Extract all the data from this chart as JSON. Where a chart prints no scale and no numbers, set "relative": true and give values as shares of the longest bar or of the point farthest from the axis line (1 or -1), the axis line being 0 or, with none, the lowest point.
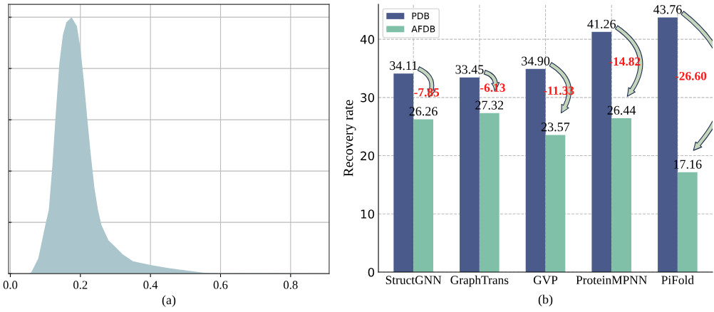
{
  "chart_data": [
    {
      "type": "area",
      "relative": true,
      "color": "#aac5cb",
      "xlabel": "(a)",
      "xlim": [
        -0.005,
        0.91
      ],
      "xticks": [
        {
          "value": 0,
          "label": "0.0"
        },
        0.2,
        0.4,
        0.6,
        0.8
      ],
      "grid": true,
      "tick_labels": "x",
      "x": [
        0.05,
        0.06,
        0.08,
        0.1,
        0.11,
        0.12,
        0.13,
        0.14,
        0.15,
        0.16,
        0.175,
        0.19,
        0.2,
        0.21,
        0.22,
        0.23,
        0.24,
        0.25,
        0.26,
        0.28,
        0.3,
        0.32,
        0.35,
        0.4,
        0.45,
        0.5,
        0.55,
        0.6,
        0.65,
        0.7,
        0.75,
        0.8,
        0.9
      ],
      "values": [
        0,
        0.005,
        0.06,
        0.19,
        0.25,
        0.42,
        0.63,
        0.82,
        0.93,
        0.98,
        1.0,
        0.965,
        0.88,
        0.75,
        0.6,
        0.46,
        0.335,
        0.25,
        0.19,
        0.13,
        0.104,
        0.076,
        0.048,
        0.034,
        0.022,
        0.013,
        0.004,
        0.001,
        0.002,
        0.001,
        0.002,
        0.001,
        0
      ]
    },
    {
      "type": "bar",
      "xlabel": "(b)",
      "ylabel": "Recovery rate",
      "categories": [
        "StructGNN",
        "GraphTrans",
        "GVP",
        "ProteinMPNN",
        "PiFold"
      ],
      "series": [
        {
          "name": "PDB",
          "color": "#4a5a8a",
          "values": [
            34.11,
            33.45,
            34.9,
            41.26,
            43.76
          ],
          "value_labels": [
            "34.11",
            "33.45",
            "34.90",
            "41.26",
            "43.76"
          ]
        },
        {
          "name": "AFDB",
          "color": "#80bfa8",
          "values": [
            26.26,
            27.32,
            23.57,
            26.44,
            17.16
          ],
          "value_labels": [
            "26.26",
            "27.32",
            "23.57",
            "26.44",
            "17.16"
          ]
        }
      ],
      "ylim": [
        0,
        46
      ],
      "yticks": [
        0,
        10,
        20,
        30,
        40
      ],
      "grid": true,
      "legend": "top left",
      "annotations": [
        {
          "text": "-7.85",
          "x": "StructGNN",
          "y": 30.7
        },
        {
          "text": "-6.13",
          "x": "GraphTrans",
          "y": 31.5
        },
        {
          "text": "-11.33",
          "x": "GVP",
          "y": 31.0
        },
        {
          "text": "-14.82",
          "x": "ProteinMPNN",
          "y": 36.0
        },
        {
          "text": "-26.60",
          "x": "PiFold",
          "y": 33.5
        }
      ]
    }
  ]
}
